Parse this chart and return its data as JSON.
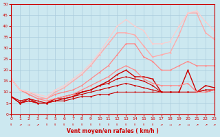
{
  "xlabel": "Vent moyen/en rafales ( km/h )",
  "xlim": [
    0,
    23
  ],
  "ylim": [
    0,
    50
  ],
  "yticks": [
    0,
    5,
    10,
    15,
    20,
    25,
    30,
    35,
    40,
    45,
    50
  ],
  "xticks": [
    0,
    1,
    2,
    3,
    4,
    5,
    6,
    7,
    8,
    9,
    10,
    11,
    12,
    13,
    14,
    15,
    16,
    17,
    18,
    19,
    20,
    21,
    22,
    23
  ],
  "bg_color": "#cce8f0",
  "grid_color": "#aaccdd",
  "series": [
    {
      "x": [
        0,
        1,
        2,
        3,
        4,
        5,
        6,
        7,
        8,
        9,
        10,
        11,
        12,
        13,
        14,
        15,
        16,
        17,
        18,
        19,
        20,
        21,
        22,
        23
      ],
      "y": [
        8,
        5,
        6,
        5,
        5,
        6,
        6,
        7,
        8,
        8,
        9,
        9,
        10,
        10,
        10,
        10,
        10,
        10,
        10,
        10,
        10,
        10,
        11,
        11
      ],
      "color": "#cc0000",
      "lw": 0.8,
      "marker": "D",
      "ms": 1.5
    },
    {
      "x": [
        0,
        1,
        2,
        3,
        4,
        5,
        6,
        7,
        8,
        9,
        10,
        11,
        12,
        13,
        14,
        15,
        16,
        17,
        18,
        19,
        20,
        21,
        22,
        23
      ],
      "y": [
        8,
        5,
        6,
        5,
        5,
        6,
        7,
        8,
        9,
        10,
        11,
        12,
        13,
        14,
        13,
        12,
        11,
        10,
        10,
        10,
        10,
        10,
        11,
        11
      ],
      "color": "#cc0000",
      "lw": 0.8,
      "marker": "D",
      "ms": 1.5
    },
    {
      "x": [
        0,
        1,
        2,
        3,
        4,
        5,
        6,
        7,
        8,
        9,
        10,
        11,
        12,
        13,
        14,
        15,
        16,
        17,
        18,
        19,
        20,
        21,
        22,
        23
      ],
      "y": [
        8,
        5,
        7,
        5,
        5,
        7,
        7,
        8,
        10,
        11,
        13,
        15,
        18,
        20,
        17,
        17,
        16,
        10,
        10,
        10,
        20,
        10,
        13,
        12
      ],
      "color": "#cc0000",
      "lw": 1.0,
      "marker": "D",
      "ms": 1.5
    },
    {
      "x": [
        0,
        1,
        2,
        3,
        4,
        5,
        6,
        7,
        8,
        9,
        10,
        11,
        12,
        13,
        14,
        15,
        16,
        17,
        18,
        19,
        20,
        21,
        22,
        23
      ],
      "y": [
        8,
        6,
        7,
        6,
        5,
        7,
        8,
        9,
        10,
        11,
        13,
        14,
        16,
        17,
        16,
        15,
        13,
        10,
        10,
        10,
        10,
        10,
        10,
        11
      ],
      "color": "#cc0000",
      "lw": 0.8,
      "marker": "D",
      "ms": 1.5
    },
    {
      "x": [
        0,
        1,
        2,
        3,
        4,
        5,
        6,
        7,
        8,
        9,
        10,
        11,
        12,
        13,
        14,
        15,
        16,
        17,
        18,
        19,
        20,
        21,
        22,
        23
      ],
      "y": [
        16,
        11,
        9,
        7,
        6,
        7,
        8,
        9,
        11,
        13,
        15,
        17,
        20,
        22,
        20,
        16,
        14,
        13,
        13,
        13,
        14,
        10,
        10,
        11
      ],
      "color": "#ff8888",
      "lw": 0.9,
      "marker": "D",
      "ms": 1.5
    },
    {
      "x": [
        0,
        1,
        2,
        3,
        4,
        5,
        6,
        7,
        8,
        9,
        10,
        11,
        12,
        13,
        14,
        15,
        16,
        17,
        18,
        19,
        20,
        21,
        22,
        23
      ],
      "y": [
        16,
        11,
        9,
        7,
        7,
        9,
        10,
        11,
        13,
        16,
        19,
        22,
        27,
        32,
        32,
        26,
        24,
        20,
        20,
        22,
        24,
        22,
        22,
        22
      ],
      "color": "#ff8888",
      "lw": 0.9,
      "marker": "D",
      "ms": 1.5
    },
    {
      "x": [
        0,
        1,
        2,
        3,
        4,
        5,
        6,
        7,
        8,
        9,
        10,
        11,
        12,
        13,
        14,
        15,
        16,
        17,
        18,
        19,
        20,
        21,
        22,
        23
      ],
      "y": [
        16,
        11,
        10,
        8,
        7,
        10,
        12,
        15,
        18,
        22,
        27,
        32,
        37,
        37,
        36,
        31,
        26,
        27,
        28,
        36,
        46,
        46,
        37,
        34
      ],
      "color": "#ffaaaa",
      "lw": 1.0,
      "marker": "D",
      "ms": 1.5
    },
    {
      "x": [
        0,
        1,
        2,
        3,
        4,
        5,
        6,
        7,
        8,
        9,
        10,
        11,
        12,
        13,
        14,
        15,
        16,
        17,
        18,
        19,
        20,
        21,
        22,
        23
      ],
      "y": [
        16,
        11,
        10,
        9,
        8,
        11,
        13,
        16,
        19,
        23,
        28,
        34,
        40,
        43,
        40,
        38,
        32,
        32,
        33,
        40,
        46,
        47,
        42,
        38
      ],
      "color": "#ffcccc",
      "lw": 0.9,
      "marker": "D",
      "ms": 1.5
    }
  ],
  "arrows": [
    "↑",
    "↗",
    "→",
    "↗",
    "↑",
    "↑",
    "↑",
    "↑",
    "↑",
    "↑",
    "↑",
    "↑",
    "↑",
    "↑",
    "↑",
    "↑",
    "↑",
    "↗",
    "→",
    "↗",
    "→",
    "↗",
    "↗",
    "↗"
  ]
}
